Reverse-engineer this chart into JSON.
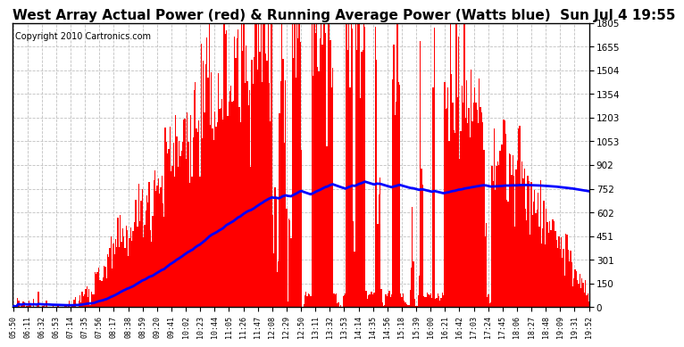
{
  "title": "West Array Actual Power (red) & Running Average Power (Watts blue)  Sun Jul 4 19:55",
  "copyright": "Copyright 2010 Cartronics.com",
  "ymax": 1805.0,
  "yticks": [
    0.0,
    150.4,
    300.8,
    451.3,
    601.7,
    752.1,
    902.5,
    1052.9,
    1203.4,
    1353.8,
    1504.2,
    1654.6,
    1805.0
  ],
  "xtick_labels": [
    "05:50",
    "06:11",
    "06:32",
    "06:53",
    "07:14",
    "07:35",
    "07:56",
    "08:17",
    "08:38",
    "08:59",
    "09:20",
    "09:41",
    "10:02",
    "10:23",
    "10:44",
    "11:05",
    "11:26",
    "11:47",
    "12:08",
    "12:29",
    "12:50",
    "13:11",
    "13:32",
    "13:53",
    "14:14",
    "14:35",
    "14:56",
    "15:18",
    "15:39",
    "16:00",
    "16:21",
    "16:42",
    "17:03",
    "17:24",
    "17:45",
    "18:06",
    "18:27",
    "18:48",
    "19:09",
    "19:31",
    "19:52"
  ],
  "n_ticks": 41,
  "n_bars": 500,
  "bar_color": "#FF0000",
  "line_color": "#0000FF",
  "background_color": "#FFFFFF",
  "grid_color": "#C0C0C0",
  "title_fontsize": 11,
  "copyright_fontsize": 7,
  "line_width": 2.0
}
